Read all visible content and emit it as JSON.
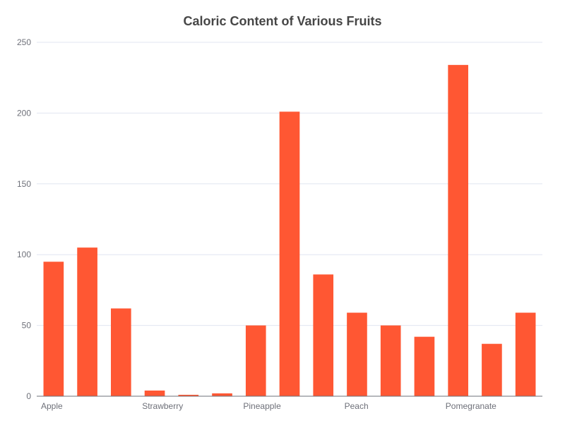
{
  "chart_data": {
    "type": "bar",
    "title": "Caloric Content of Various Fruits",
    "xlabel": "",
    "ylabel": "",
    "categories": [
      "Apple",
      "",
      "",
      "Strawberry",
      "",
      "",
      "Pineapple",
      "",
      "",
      "Peach",
      "",
      "",
      "Pomegranate",
      "",
      ""
    ],
    "visible_category_labels": [
      "Apple",
      "Strawberry",
      "Pineapple",
      "Peach",
      "Pomegranate"
    ],
    "values": [
      95,
      105,
      62,
      4,
      1,
      2,
      50,
      201,
      86,
      59,
      50,
      42,
      234,
      37,
      59
    ],
    "ylim": [
      0,
      250
    ],
    "yticks": [
      "0",
      "50",
      "100",
      "150",
      "200",
      "250"
    ],
    "grid": true,
    "legend": "none",
    "colors": {
      "bar": "#ff5733",
      "grid": "#e0e6f1",
      "axis": "#6e7079",
      "title": "#464646"
    }
  }
}
